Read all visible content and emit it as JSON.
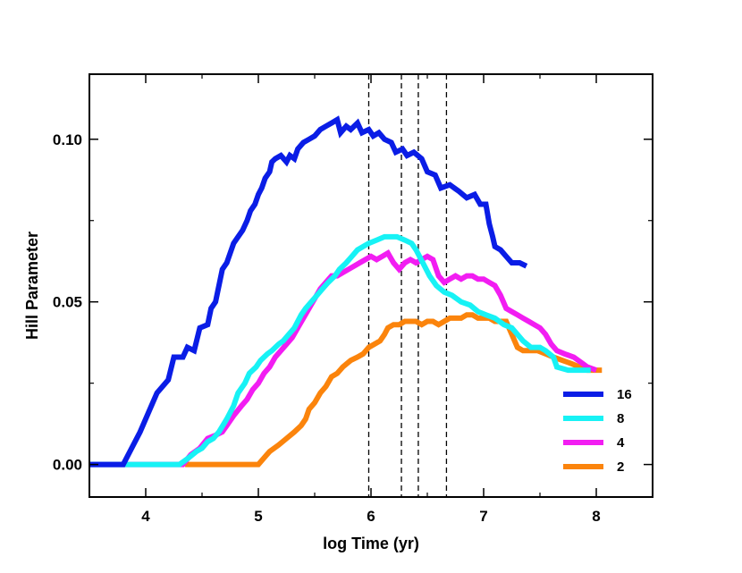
{
  "chart_data": {
    "type": "line",
    "xlabel": "log Time (yr)",
    "ylabel": "Hill Parameter",
    "xlim": [
      3.5,
      8.5
    ],
    "ylim": [
      -0.01,
      0.12
    ],
    "x_ticks": [
      4,
      5,
      6,
      7,
      8
    ],
    "x_tick_labels": [
      "4",
      "5",
      "6",
      "7",
      "8"
    ],
    "y_ticks": [
      0.0,
      0.05,
      0.1
    ],
    "y_tick_labels": [
      "0.00",
      "0.05",
      "0.10"
    ],
    "vlines": [
      5.98,
      6.27,
      6.42,
      6.67
    ],
    "legend_position": "bottom-right",
    "grid": false,
    "series": [
      {
        "name": "16",
        "color": "#0a1de6",
        "points": [
          [
            3.5,
            0.0
          ],
          [
            3.8,
            0.0
          ],
          [
            3.95,
            0.01
          ],
          [
            4.05,
            0.018
          ],
          [
            4.1,
            0.022
          ],
          [
            4.2,
            0.026
          ],
          [
            4.25,
            0.033
          ],
          [
            4.33,
            0.033
          ],
          [
            4.37,
            0.036
          ],
          [
            4.43,
            0.035
          ],
          [
            4.48,
            0.042
          ],
          [
            4.55,
            0.043
          ],
          [
            4.58,
            0.048
          ],
          [
            4.62,
            0.05
          ],
          [
            4.68,
            0.06
          ],
          [
            4.72,
            0.062
          ],
          [
            4.78,
            0.068
          ],
          [
            4.82,
            0.07
          ],
          [
            4.86,
            0.072
          ],
          [
            4.9,
            0.075
          ],
          [
            4.93,
            0.078
          ],
          [
            4.97,
            0.08
          ],
          [
            5.0,
            0.083
          ],
          [
            5.03,
            0.085
          ],
          [
            5.06,
            0.088
          ],
          [
            5.1,
            0.09
          ],
          [
            5.12,
            0.093
          ],
          [
            5.15,
            0.094
          ],
          [
            5.2,
            0.095
          ],
          [
            5.25,
            0.093
          ],
          [
            5.28,
            0.095
          ],
          [
            5.32,
            0.094
          ],
          [
            5.35,
            0.097
          ],
          [
            5.4,
            0.099
          ],
          [
            5.45,
            0.1
          ],
          [
            5.5,
            0.101
          ],
          [
            5.55,
            0.103
          ],
          [
            5.6,
            0.104
          ],
          [
            5.65,
            0.105
          ],
          [
            5.7,
            0.106
          ],
          [
            5.73,
            0.102
          ],
          [
            5.78,
            0.104
          ],
          [
            5.82,
            0.103
          ],
          [
            5.88,
            0.105
          ],
          [
            5.92,
            0.102
          ],
          [
            5.98,
            0.103
          ],
          [
            6.02,
            0.101
          ],
          [
            6.07,
            0.102
          ],
          [
            6.12,
            0.1
          ],
          [
            6.18,
            0.099
          ],
          [
            6.22,
            0.096
          ],
          [
            6.28,
            0.097
          ],
          [
            6.32,
            0.095
          ],
          [
            6.38,
            0.096
          ],
          [
            6.45,
            0.094
          ],
          [
            6.5,
            0.09
          ],
          [
            6.57,
            0.089
          ],
          [
            6.62,
            0.085
          ],
          [
            6.7,
            0.086
          ],
          [
            6.78,
            0.084
          ],
          [
            6.85,
            0.082
          ],
          [
            6.92,
            0.083
          ],
          [
            6.97,
            0.08
          ],
          [
            7.02,
            0.08
          ],
          [
            7.05,
            0.074
          ],
          [
            7.08,
            0.07
          ],
          [
            7.1,
            0.067
          ],
          [
            7.15,
            0.066
          ],
          [
            7.2,
            0.064
          ],
          [
            7.25,
            0.062
          ],
          [
            7.32,
            0.062
          ],
          [
            7.38,
            0.061
          ]
        ]
      },
      {
        "name": "8",
        "color": "#17f2f5",
        "points": [
          [
            3.5,
            0.0
          ],
          [
            4.3,
            0.0
          ],
          [
            4.38,
            0.002
          ],
          [
            4.45,
            0.004
          ],
          [
            4.5,
            0.005
          ],
          [
            4.55,
            0.007
          ],
          [
            4.6,
            0.008
          ],
          [
            4.65,
            0.01
          ],
          [
            4.72,
            0.014
          ],
          [
            4.78,
            0.018
          ],
          [
            4.82,
            0.022
          ],
          [
            4.88,
            0.025
          ],
          [
            4.92,
            0.028
          ],
          [
            4.98,
            0.03
          ],
          [
            5.02,
            0.032
          ],
          [
            5.08,
            0.034
          ],
          [
            5.12,
            0.035
          ],
          [
            5.18,
            0.037
          ],
          [
            5.22,
            0.038
          ],
          [
            5.27,
            0.04
          ],
          [
            5.32,
            0.042
          ],
          [
            5.38,
            0.046
          ],
          [
            5.42,
            0.048
          ],
          [
            5.47,
            0.05
          ],
          [
            5.52,
            0.052
          ],
          [
            5.57,
            0.054
          ],
          [
            5.62,
            0.056
          ],
          [
            5.68,
            0.058
          ],
          [
            5.72,
            0.06
          ],
          [
            5.78,
            0.062
          ],
          [
            5.83,
            0.064
          ],
          [
            5.88,
            0.066
          ],
          [
            5.93,
            0.067
          ],
          [
            5.98,
            0.068
          ],
          [
            6.05,
            0.069
          ],
          [
            6.12,
            0.07
          ],
          [
            6.18,
            0.07
          ],
          [
            6.23,
            0.07
          ],
          [
            6.3,
            0.069
          ],
          [
            6.36,
            0.068
          ],
          [
            6.4,
            0.066
          ],
          [
            6.46,
            0.062
          ],
          [
            6.52,
            0.058
          ],
          [
            6.58,
            0.055
          ],
          [
            6.65,
            0.053
          ],
          [
            6.72,
            0.052
          ],
          [
            6.8,
            0.05
          ],
          [
            6.88,
            0.049
          ],
          [
            6.95,
            0.047
          ],
          [
            7.02,
            0.046
          ],
          [
            7.1,
            0.045
          ],
          [
            7.18,
            0.043
          ],
          [
            7.25,
            0.042
          ],
          [
            7.3,
            0.04
          ],
          [
            7.35,
            0.038
          ],
          [
            7.42,
            0.036
          ],
          [
            7.5,
            0.036
          ],
          [
            7.55,
            0.035
          ],
          [
            7.62,
            0.033
          ],
          [
            7.65,
            0.03
          ],
          [
            7.75,
            0.029
          ],
          [
            7.85,
            0.029
          ],
          [
            7.95,
            0.029
          ]
        ]
      },
      {
        "name": "4",
        "color": "#f21df2",
        "points": [
          [
            3.5,
            0.0
          ],
          [
            4.33,
            0.0
          ],
          [
            4.4,
            0.003
          ],
          [
            4.48,
            0.005
          ],
          [
            4.55,
            0.008
          ],
          [
            4.62,
            0.009
          ],
          [
            4.68,
            0.01
          ],
          [
            4.72,
            0.012
          ],
          [
            4.78,
            0.015
          ],
          [
            4.85,
            0.018
          ],
          [
            4.9,
            0.02
          ],
          [
            4.95,
            0.023
          ],
          [
            5.0,
            0.025
          ],
          [
            5.05,
            0.028
          ],
          [
            5.1,
            0.03
          ],
          [
            5.15,
            0.033
          ],
          [
            5.2,
            0.035
          ],
          [
            5.25,
            0.037
          ],
          [
            5.3,
            0.039
          ],
          [
            5.35,
            0.042
          ],
          [
            5.4,
            0.045
          ],
          [
            5.45,
            0.048
          ],
          [
            5.5,
            0.051
          ],
          [
            5.55,
            0.054
          ],
          [
            5.6,
            0.056
          ],
          [
            5.65,
            0.058
          ],
          [
            5.7,
            0.058
          ],
          [
            5.75,
            0.059
          ],
          [
            5.8,
            0.06
          ],
          [
            5.85,
            0.061
          ],
          [
            5.9,
            0.062
          ],
          [
            5.95,
            0.063
          ],
          [
            6.0,
            0.064
          ],
          [
            6.05,
            0.063
          ],
          [
            6.1,
            0.064
          ],
          [
            6.15,
            0.065
          ],
          [
            6.2,
            0.062
          ],
          [
            6.25,
            0.06
          ],
          [
            6.3,
            0.062
          ],
          [
            6.35,
            0.063
          ],
          [
            6.4,
            0.062
          ],
          [
            6.45,
            0.063
          ],
          [
            6.5,
            0.064
          ],
          [
            6.55,
            0.063
          ],
          [
            6.6,
            0.058
          ],
          [
            6.65,
            0.056
          ],
          [
            6.7,
            0.057
          ],
          [
            6.75,
            0.058
          ],
          [
            6.8,
            0.057
          ],
          [
            6.85,
            0.058
          ],
          [
            6.9,
            0.058
          ],
          [
            6.95,
            0.057
          ],
          [
            7.0,
            0.057
          ],
          [
            7.05,
            0.056
          ],
          [
            7.1,
            0.055
          ],
          [
            7.15,
            0.052
          ],
          [
            7.2,
            0.048
          ],
          [
            7.25,
            0.047
          ],
          [
            7.3,
            0.046
          ],
          [
            7.35,
            0.045
          ],
          [
            7.4,
            0.044
          ],
          [
            7.45,
            0.043
          ],
          [
            7.5,
            0.042
          ],
          [
            7.55,
            0.04
          ],
          [
            7.6,
            0.037
          ],
          [
            7.65,
            0.035
          ],
          [
            7.72,
            0.034
          ],
          [
            7.8,
            0.033
          ],
          [
            7.88,
            0.031
          ],
          [
            7.92,
            0.03
          ],
          [
            8.0,
            0.029
          ]
        ]
      },
      {
        "name": "2",
        "color": "#fb840c",
        "points": [
          [
            4.35,
            0.0
          ],
          [
            5.0,
            0.0
          ],
          [
            5.05,
            0.002
          ],
          [
            5.1,
            0.004
          ],
          [
            5.18,
            0.006
          ],
          [
            5.25,
            0.008
          ],
          [
            5.32,
            0.01
          ],
          [
            5.38,
            0.012
          ],
          [
            5.42,
            0.014
          ],
          [
            5.45,
            0.017
          ],
          [
            5.5,
            0.019
          ],
          [
            5.55,
            0.022
          ],
          [
            5.6,
            0.024
          ],
          [
            5.65,
            0.027
          ],
          [
            5.7,
            0.028
          ],
          [
            5.75,
            0.03
          ],
          [
            5.82,
            0.032
          ],
          [
            5.88,
            0.033
          ],
          [
            5.93,
            0.034
          ],
          [
            5.98,
            0.036
          ],
          [
            6.03,
            0.037
          ],
          [
            6.08,
            0.038
          ],
          [
            6.12,
            0.04
          ],
          [
            6.15,
            0.042
          ],
          [
            6.2,
            0.043
          ],
          [
            6.25,
            0.043
          ],
          [
            6.3,
            0.044
          ],
          [
            6.35,
            0.044
          ],
          [
            6.4,
            0.044
          ],
          [
            6.45,
            0.043
          ],
          [
            6.5,
            0.044
          ],
          [
            6.55,
            0.044
          ],
          [
            6.6,
            0.043
          ],
          [
            6.65,
            0.044
          ],
          [
            6.7,
            0.045
          ],
          [
            6.75,
            0.045
          ],
          [
            6.8,
            0.045
          ],
          [
            6.85,
            0.046
          ],
          [
            6.9,
            0.046
          ],
          [
            6.95,
            0.045
          ],
          [
            7.0,
            0.045
          ],
          [
            7.05,
            0.045
          ],
          [
            7.1,
            0.044
          ],
          [
            7.15,
            0.044
          ],
          [
            7.2,
            0.044
          ],
          [
            7.25,
            0.04
          ],
          [
            7.3,
            0.036
          ],
          [
            7.35,
            0.035
          ],
          [
            7.4,
            0.035
          ],
          [
            7.48,
            0.035
          ],
          [
            7.55,
            0.034
          ],
          [
            7.62,
            0.033
          ],
          [
            7.7,
            0.032
          ],
          [
            7.78,
            0.031
          ],
          [
            7.85,
            0.03
          ],
          [
            7.92,
            0.029
          ],
          [
            8.05,
            0.029
          ]
        ]
      }
    ]
  }
}
